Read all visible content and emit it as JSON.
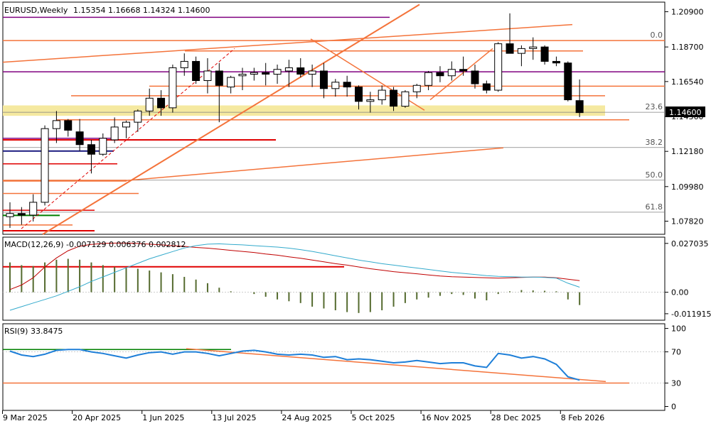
{
  "header": {
    "symbol": "EURUSD,Weekly",
    "ohlc": "1.15354 1.16668 1.14324 1.14600"
  },
  "current_price_label": "1.14600",
  "macd_header": "MACD(12,26,9) -0.007129 0.006376 0.002812",
  "rsi_header": "RSI(9) 33.8475",
  "colors": {
    "bull_candle": "#ffffff",
    "bear_candle": "#000000",
    "orange": "#f4733a",
    "red": "#e00000",
    "purple": "#800080",
    "blue_dark": "#1a1a80",
    "green": "#008000",
    "yellow_zone": "#f5e9a0",
    "macd_hist": "#556b2f",
    "macd_signal": "#c00000",
    "macd_line": "#33aacc",
    "rsi_line": "#1e7fd8",
    "fib_grey": "#808080"
  },
  "chart_data": [
    {
      "type": "candlestick",
      "title": "EURUSD,Weekly",
      "ylim": [
        1.07,
        1.215
      ],
      "y_ticks": [
        "1.20900",
        "1.18700",
        "1.16540",
        "1.14360",
        "1.12180",
        "1.09980",
        "1.07820"
      ],
      "x_tick_labels": [
        "9 Mar 2025",
        "20 Apr 2025",
        "1 Jun 2025",
        "13 Jul 2025",
        "24 Aug 2025",
        "5 Oct 2025",
        "16 Nov 2025",
        "28 Dec 2025",
        "8 Feb 2026"
      ],
      "fibonacci": [
        {
          "label": "0.0",
          "price": 1.191
        },
        {
          "label": "23.6",
          "price": 1.1462
        },
        {
          "label": "38.2",
          "price": 1.1242
        },
        {
          "label": "50.0",
          "price": 1.1038
        },
        {
          "label": "61.8",
          "price": 1.0838
        }
      ],
      "candles": [
        {
          "o": 1.081,
          "h": 1.09,
          "l": 1.074,
          "c": 1.083
        },
        {
          "o": 1.083,
          "h": 1.087,
          "l": 1.076,
          "c": 1.082
        },
        {
          "o": 1.082,
          "h": 1.095,
          "l": 1.078,
          "c": 1.09
        },
        {
          "o": 1.09,
          "h": 1.138,
          "l": 1.088,
          "c": 1.136
        },
        {
          "o": 1.136,
          "h": 1.147,
          "l": 1.127,
          "c": 1.141
        },
        {
          "o": 1.141,
          "h": 1.142,
          "l": 1.131,
          "c": 1.135
        },
        {
          "o": 1.134,
          "h": 1.142,
          "l": 1.122,
          "c": 1.126
        },
        {
          "o": 1.126,
          "h": 1.129,
          "l": 1.108,
          "c": 1.12
        },
        {
          "o": 1.12,
          "h": 1.133,
          "l": 1.119,
          "c": 1.13
        },
        {
          "o": 1.129,
          "h": 1.143,
          "l": 1.127,
          "c": 1.137
        },
        {
          "o": 1.137,
          "h": 1.141,
          "l": 1.13,
          "c": 1.14
        },
        {
          "o": 1.14,
          "h": 1.148,
          "l": 1.134,
          "c": 1.147
        },
        {
          "o": 1.147,
          "h": 1.161,
          "l": 1.144,
          "c": 1.155
        },
        {
          "o": 1.155,
          "h": 1.16,
          "l": 1.144,
          "c": 1.149
        },
        {
          "o": 1.149,
          "h": 1.176,
          "l": 1.146,
          "c": 1.174
        },
        {
          "o": 1.174,
          "h": 1.183,
          "l": 1.169,
          "c": 1.178
        },
        {
          "o": 1.178,
          "h": 1.181,
          "l": 1.164,
          "c": 1.166
        },
        {
          "o": 1.166,
          "h": 1.18,
          "l": 1.158,
          "c": 1.172
        },
        {
          "o": 1.172,
          "h": 1.177,
          "l": 1.14,
          "c": 1.163
        },
        {
          "o": 1.162,
          "h": 1.169,
          "l": 1.158,
          "c": 1.168
        },
        {
          "o": 1.169,
          "h": 1.174,
          "l": 1.16,
          "c": 1.17
        },
        {
          "o": 1.17,
          "h": 1.174,
          "l": 1.166,
          "c": 1.171
        },
        {
          "o": 1.171,
          "h": 1.177,
          "l": 1.163,
          "c": 1.17
        },
        {
          "o": 1.17,
          "h": 1.176,
          "l": 1.164,
          "c": 1.173
        },
        {
          "o": 1.172,
          "h": 1.179,
          "l": 1.162,
          "c": 1.174
        },
        {
          "o": 1.174,
          "h": 1.18,
          "l": 1.168,
          "c": 1.17
        },
        {
          "o": 1.17,
          "h": 1.176,
          "l": 1.162,
          "c": 1.172
        },
        {
          "o": 1.172,
          "h": 1.177,
          "l": 1.155,
          "c": 1.161
        },
        {
          "o": 1.161,
          "h": 1.167,
          "l": 1.156,
          "c": 1.165
        },
        {
          "o": 1.165,
          "h": 1.169,
          "l": 1.156,
          "c": 1.162
        },
        {
          "o": 1.162,
          "h": 1.163,
          "l": 1.148,
          "c": 1.153
        },
        {
          "o": 1.153,
          "h": 1.159,
          "l": 1.146,
          "c": 1.154
        },
        {
          "o": 1.154,
          "h": 1.163,
          "l": 1.151,
          "c": 1.16
        },
        {
          "o": 1.16,
          "h": 1.162,
          "l": 1.147,
          "c": 1.15
        },
        {
          "o": 1.15,
          "h": 1.16,
          "l": 1.149,
          "c": 1.159
        },
        {
          "o": 1.159,
          "h": 1.164,
          "l": 1.155,
          "c": 1.163
        },
        {
          "o": 1.163,
          "h": 1.172,
          "l": 1.16,
          "c": 1.171
        },
        {
          "o": 1.171,
          "h": 1.175,
          "l": 1.165,
          "c": 1.169
        },
        {
          "o": 1.169,
          "h": 1.178,
          "l": 1.166,
          "c": 1.173
        },
        {
          "o": 1.173,
          "h": 1.181,
          "l": 1.169,
          "c": 1.172
        },
        {
          "o": 1.172,
          "h": 1.176,
          "l": 1.161,
          "c": 1.164
        },
        {
          "o": 1.164,
          "h": 1.166,
          "l": 1.158,
          "c": 1.16
        },
        {
          "o": 1.16,
          "h": 1.19,
          "l": 1.159,
          "c": 1.189
        },
        {
          "o": 1.189,
          "h": 1.208,
          "l": 1.183,
          "c": 1.183
        },
        {
          "o": 1.183,
          "h": 1.188,
          "l": 1.175,
          "c": 1.186
        },
        {
          "o": 1.186,
          "h": 1.193,
          "l": 1.179,
          "c": 1.187
        },
        {
          "o": 1.187,
          "h": 1.188,
          "l": 1.176,
          "c": 1.178
        },
        {
          "o": 1.178,
          "h": 1.181,
          "l": 1.175,
          "c": 1.177
        },
        {
          "o": 1.177,
          "h": 1.178,
          "l": 1.153,
          "c": 1.154
        },
        {
          "o": 1.1535,
          "h": 1.1667,
          "l": 1.1432,
          "c": 1.146
        }
      ]
    },
    {
      "type": "bar",
      "title": "MACD(12,26,9) -0.007129 0.006376 0.002812",
      "ylim": [
        -0.0155,
        0.0305
      ],
      "y_ticks": [
        "0.027035",
        "0.00",
        "-0.011915"
      ],
      "histogram": [
        0.0165,
        0.015,
        0.0145,
        0.0165,
        0.018,
        0.0185,
        0.018,
        0.0165,
        0.015,
        0.014,
        0.0135,
        0.013,
        0.012,
        0.011,
        0.01,
        0.0085,
        0.007,
        0.005,
        0.0025,
        0.0005,
        0.0,
        -0.001,
        -0.0025,
        -0.004,
        -0.005,
        -0.006,
        -0.008,
        -0.009,
        -0.01,
        -0.011,
        -0.0115,
        -0.011,
        -0.01,
        -0.008,
        -0.006,
        -0.004,
        -0.003,
        -0.002,
        -0.001,
        -0.0015,
        -0.0035,
        -0.0045,
        -0.001,
        0.0005,
        0.0012,
        0.001,
        0.0008,
        0.0005,
        -0.004,
        -0.0071
      ],
      "signal": [
        0.0015,
        0.004,
        0.008,
        0.014,
        0.019,
        0.023,
        0.0255,
        0.0265,
        0.027,
        0.0272,
        0.0272,
        0.027,
        0.0266,
        0.0262,
        0.0258,
        0.0254,
        0.0248,
        0.0244,
        0.0238,
        0.0232,
        0.0226,
        0.022,
        0.0212,
        0.0205,
        0.0196,
        0.0188,
        0.0178,
        0.0168,
        0.0158,
        0.015,
        0.014,
        0.013,
        0.0122,
        0.0114,
        0.0108,
        0.0102,
        0.0096,
        0.009,
        0.0086,
        0.0084,
        0.0082,
        0.008,
        0.0078,
        0.008,
        0.0082,
        0.0084,
        0.0084,
        0.008,
        0.0072,
        0.0064
      ],
      "macd": [
        -0.01,
        -0.008,
        -0.006,
        -0.004,
        -0.002,
        0.0005,
        0.003,
        0.006,
        0.0085,
        0.011,
        0.0135,
        0.016,
        0.0185,
        0.0205,
        0.0225,
        0.0245,
        0.0258,
        0.0266,
        0.0268,
        0.0265,
        0.0262,
        0.0258,
        0.0254,
        0.025,
        0.0244,
        0.0236,
        0.0226,
        0.0214,
        0.0202,
        0.019,
        0.0178,
        0.0168,
        0.0158,
        0.015,
        0.0142,
        0.0134,
        0.0126,
        0.0118,
        0.011,
        0.0104,
        0.0098,
        0.0092,
        0.0088,
        0.0086,
        0.0084,
        0.0084,
        0.0082,
        0.0078,
        0.005,
        0.0028
      ]
    },
    {
      "type": "line",
      "title": "RSI(9) 33.8475",
      "ylim": [
        -5,
        106
      ],
      "y_ticks": [
        "100",
        "70",
        "30",
        "0"
      ],
      "levels": [
        70,
        30
      ],
      "values": [
        71,
        66,
        64,
        67,
        72,
        73,
        73,
        70,
        68,
        65,
        62,
        66,
        69,
        70,
        67,
        70,
        70,
        68,
        65,
        68,
        71,
        72,
        70,
        67,
        66,
        67,
        66,
        63,
        64,
        60,
        61,
        60,
        58,
        56,
        57,
        59,
        57,
        55,
        56,
        56,
        52,
        50,
        68,
        66,
        62,
        64,
        61,
        54,
        38,
        33.8475
      ]
    }
  ]
}
